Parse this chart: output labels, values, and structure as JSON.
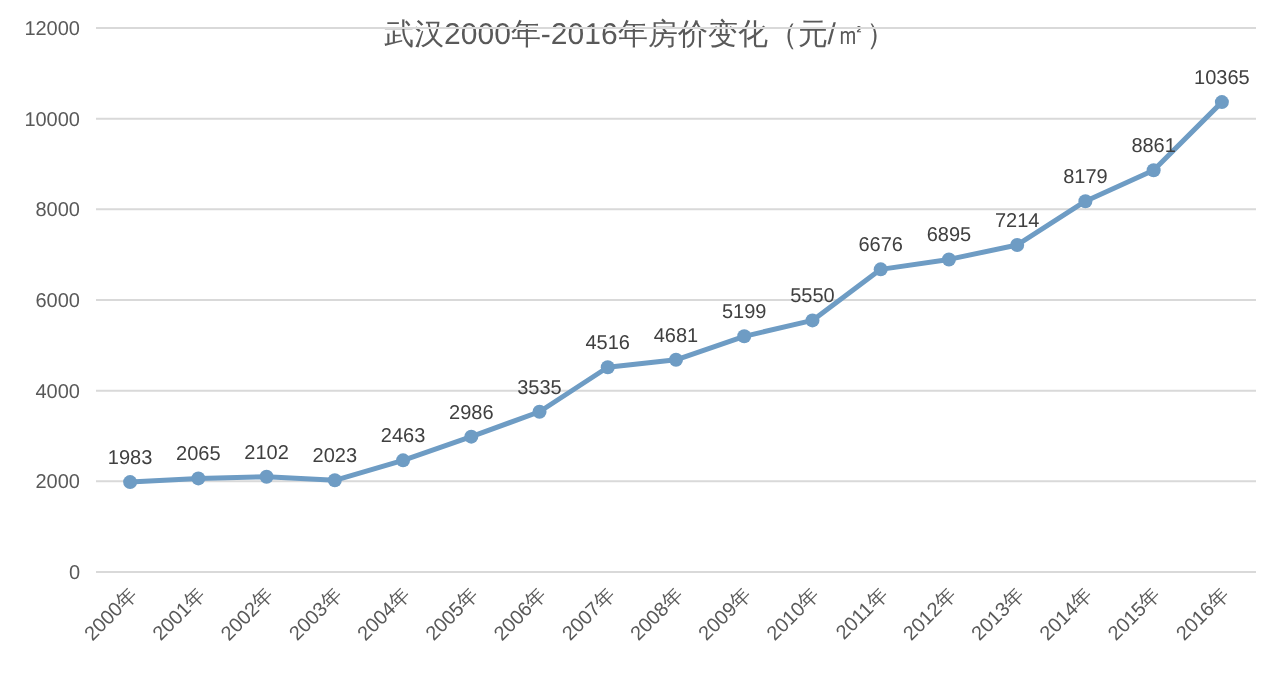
{
  "chart_data": {
    "type": "line",
    "title": "武汉2000年-2016年房价变化（元/㎡）",
    "categories": [
      "2000年",
      "2001年",
      "2002年",
      "2003年",
      "2004年",
      "2005年",
      "2006年",
      "2007年",
      "2008年",
      "2009年",
      "2010年",
      "2011年",
      "2012年",
      "2013年",
      "2014年",
      "2015年",
      "2016年"
    ],
    "series": [
      {
        "color": "#6e9cc4",
        "values": [
          1983,
          2065,
          2102,
          2023,
          2463,
          2986,
          3535,
          4516,
          4681,
          5199,
          5550,
          6676,
          6895,
          7214,
          8179,
          8861,
          10365
        ]
      }
    ],
    "ylim": [
      0,
      12000
    ],
    "yticks": [
      0,
      2000,
      4000,
      6000,
      8000,
      10000,
      12000
    ],
    "grid": "y",
    "marker": "circle",
    "line_style": "solid",
    "data_labels": true
  }
}
